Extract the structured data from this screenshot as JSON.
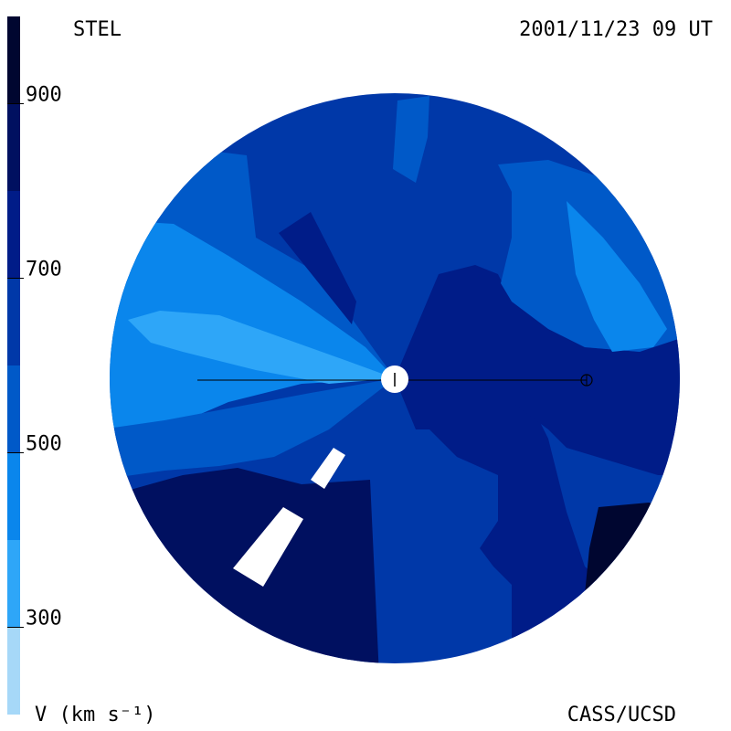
{
  "header": {
    "instrument": "STEL",
    "timestamp": "2001/11/23 09 UT"
  },
  "footer": {
    "unit_label": "V (km s⁻¹)",
    "credit": "CASS/UCSD"
  },
  "chart_data": {
    "type": "heatmap",
    "projection": "polar ecliptic view",
    "colorbar": {
      "min": 200,
      "max": 1000,
      "step": 100,
      "ticks": [
        300,
        500,
        700,
        900
      ],
      "levels": [
        {
          "from": 200,
          "to": 300,
          "color": "#a6d8f8"
        },
        {
          "from": 300,
          "to": 400,
          "color": "#2ea6f8"
        },
        {
          "from": 400,
          "to": 500,
          "color": "#0a86ec"
        },
        {
          "from": 500,
          "to": 600,
          "color": "#0059c8"
        },
        {
          "from": 600,
          "to": 700,
          "color": "#0038a8"
        },
        {
          "from": 700,
          "to": 800,
          "color": "#001c88"
        },
        {
          "from": 800,
          "to": 900,
          "color": "#001060"
        },
        {
          "from": 900,
          "to": 1000,
          "color": "#000630"
        }
      ]
    },
    "regions": [
      {
        "name": "background",
        "level": 600
      },
      {
        "name": "upper-left-band",
        "level": 500
      },
      {
        "name": "left-fan",
        "level": 400
      },
      {
        "name": "left-streamer",
        "level": 300
      },
      {
        "name": "lower-left-band",
        "level": 500
      },
      {
        "name": "bottom-left-fast",
        "level": 800
      },
      {
        "name": "bottom-right-fast",
        "level": 700
      },
      {
        "name": "right-fast-wedge",
        "level": 700
      },
      {
        "name": "upper-right-band",
        "level": 500
      },
      {
        "name": "upper-right-fan",
        "level": 400
      },
      {
        "name": "lower-right-peak",
        "level": 900
      },
      {
        "name": "upper-left-finger",
        "level": 700
      },
      {
        "name": "top-finger",
        "level": 500
      }
    ],
    "markers": [
      {
        "name": "sun",
        "symbol": "circle-plus"
      },
      {
        "name": "earth",
        "symbol": "circled-plus"
      }
    ],
    "grid": false,
    "legend": "left-colorbar"
  }
}
